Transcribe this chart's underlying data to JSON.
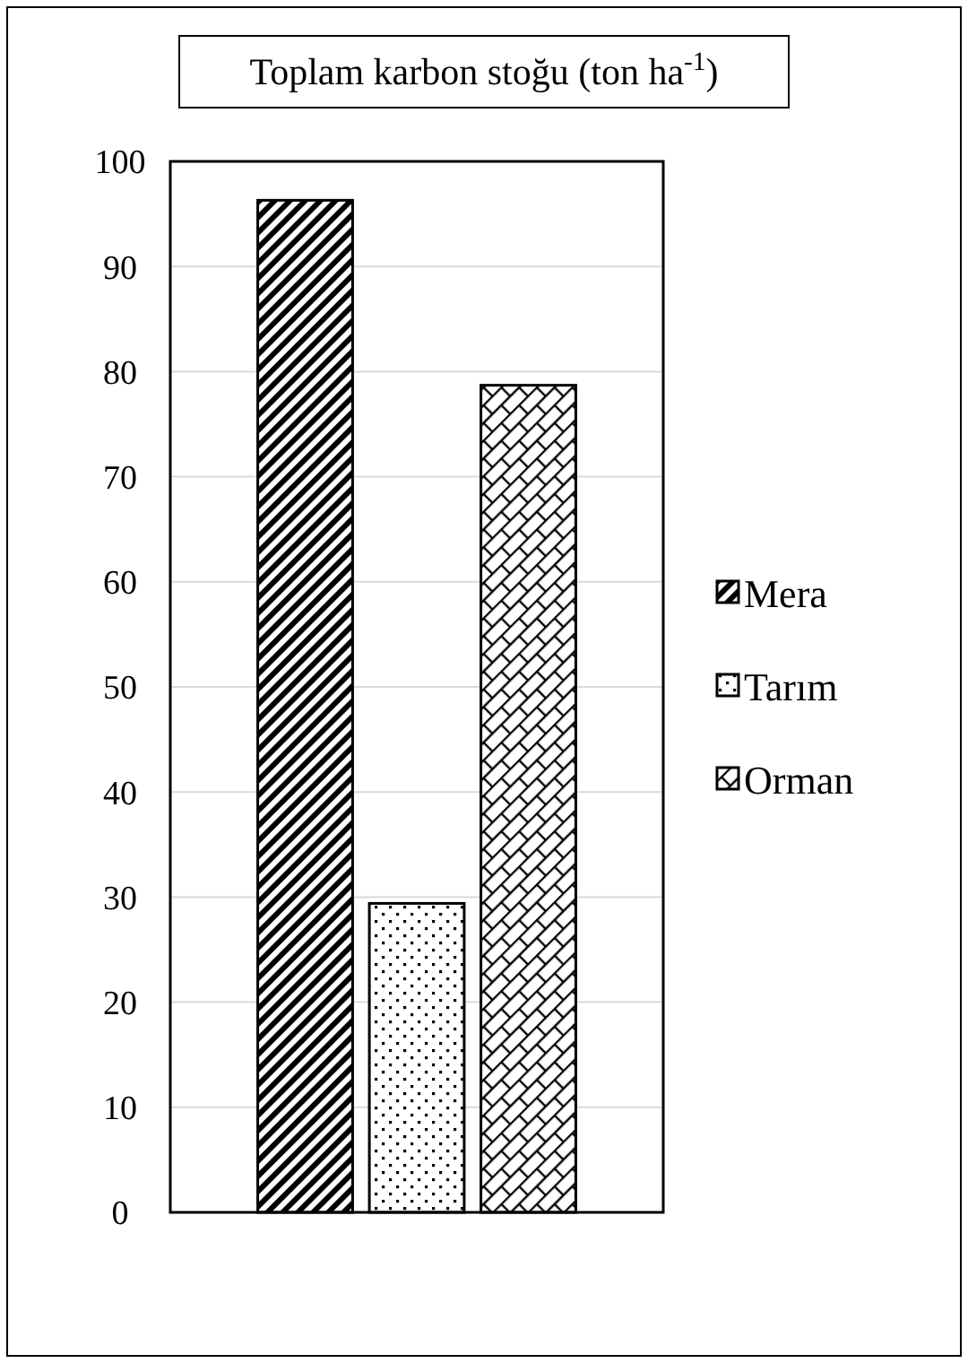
{
  "chart_data": {
    "type": "bar",
    "title": "Toplam karbon stoğu (ton ha$^{-1}$)",
    "categories": [
      null
    ],
    "series": [
      {
        "name": "Mera",
        "color": "#000000",
        "values": [
          96.3
        ]
      },
      {
        "name": "Tarım",
        "color": "#000000",
        "values": [
          29.4
        ]
      },
      {
        "name": "Orman",
        "color": "#000000",
        "values": [
          78.7
        ]
      }
    ],
    "ylim": [
      0,
      100
    ],
    "yticks": [
      0,
      10,
      20,
      30,
      40,
      50,
      60,
      70,
      80,
      90,
      100
    ],
    "grid": "y",
    "legend": "right"
  }
}
